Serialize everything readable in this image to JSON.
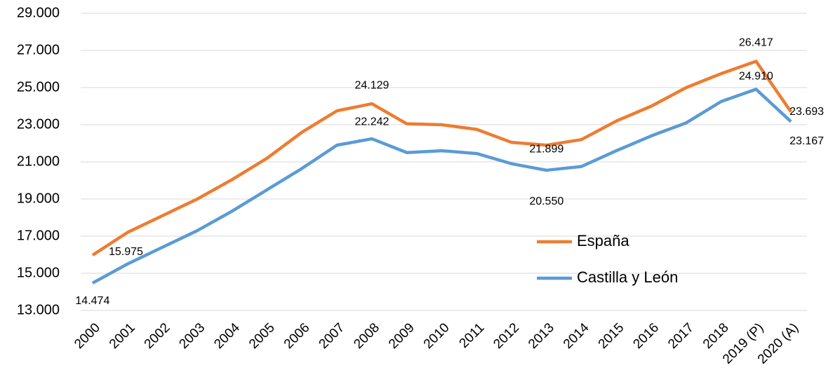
{
  "chart_data": {
    "type": "line",
    "categories": [
      "2000",
      "2001",
      "2002",
      "2003",
      "2004",
      "2005",
      "2006",
      "2007",
      "2008",
      "2009",
      "2010",
      "2011",
      "2012",
      "2013",
      "2014",
      "2015",
      "2016",
      "2017",
      "2018",
      "2019 (P)",
      "2020 (A)"
    ],
    "series": [
      {
        "name": "España",
        "color": "#ED7D31",
        "values": [
          15975,
          17200,
          18100,
          19000,
          20050,
          21200,
          22600,
          23750,
          24129,
          23050,
          23000,
          22750,
          22050,
          21899,
          22200,
          23200,
          24000,
          25000,
          25750,
          26417,
          23693
        ],
        "value_labels": [
          "15.975",
          null,
          null,
          null,
          null,
          null,
          null,
          null,
          "24.129",
          null,
          null,
          null,
          null,
          "21.899",
          null,
          null,
          null,
          null,
          null,
          "26.417",
          "23.693"
        ]
      },
      {
        "name": "Castilla y León",
        "color": "#5B9BD5",
        "values": [
          14474,
          15500,
          16400,
          17300,
          18350,
          19500,
          20650,
          21900,
          22242,
          21500,
          21600,
          21450,
          20900,
          20550,
          20750,
          21600,
          22400,
          23100,
          24250,
          24910,
          23167
        ],
        "value_labels": [
          "14.474",
          null,
          null,
          null,
          null,
          null,
          null,
          null,
          "22.242",
          null,
          null,
          null,
          null,
          "20.550",
          null,
          null,
          null,
          null,
          null,
          "24.910",
          "23.167"
        ]
      }
    ],
    "ylim": [
      13000,
      29000
    ],
    "yticks": [
      {
        "value": 13000,
        "label": "13.000"
      },
      {
        "value": 15000,
        "label": "15.000"
      },
      {
        "value": 17000,
        "label": "17.000"
      },
      {
        "value": 19000,
        "label": "19.000"
      },
      {
        "value": 21000,
        "label": "21.000"
      },
      {
        "value": 23000,
        "label": "23.000"
      },
      {
        "value": 25000,
        "label": "25.000"
      },
      {
        "value": 27000,
        "label": "27.000"
      },
      {
        "value": 29000,
        "label": "29.000"
      }
    ],
    "grid": true
  }
}
